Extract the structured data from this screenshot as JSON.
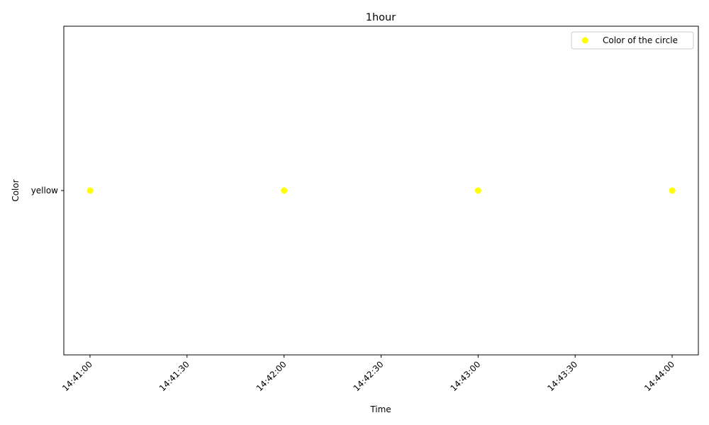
{
  "chart_data": {
    "type": "scatter",
    "title": "1hour",
    "xlabel": "Time",
    "ylabel": "Color",
    "x_ticks": [
      "14:41:00",
      "14:41:30",
      "14:42:00",
      "14:42:30",
      "14:43:00",
      "14:43:30",
      "14:44:00"
    ],
    "y_ticks": [
      "yellow"
    ],
    "series": [
      {
        "name": "Color of the circle",
        "color": "#ffff00",
        "x": [
          "14:41:00",
          "14:42:00",
          "14:43:00",
          "14:44:00"
        ],
        "y": [
          "yellow",
          "yellow",
          "yellow",
          "yellow"
        ]
      }
    ],
    "legend_position": "top-right",
    "grid": false
  }
}
